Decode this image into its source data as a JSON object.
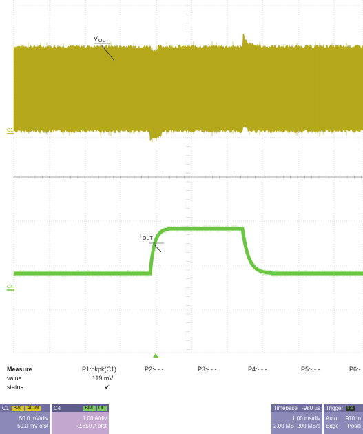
{
  "traces": {
    "vout_label": "V",
    "vout_sub": "OUT",
    "iout_label": "I",
    "iout_sub": "OUT",
    "c1_marker": "C1",
    "c4_marker": "C4"
  },
  "colors": {
    "vout": "#b5a81a",
    "iout": "#6cc644",
    "grid": "#b0b0b0",
    "panel": "#8a89b8"
  },
  "measure": {
    "title": "Measure",
    "row_value": "value",
    "row_status": "status",
    "p1_label": "P1:pkpk(C1)",
    "p1_value": "119 mV",
    "p1_status": "✔",
    "p2_label": "P2:- - -",
    "p3_label": "P3:- - -",
    "p4_label": "P4:- - -",
    "p5_label": "P5:- - -",
    "p6_label": "P6:-"
  },
  "c1": {
    "name": "C1",
    "tag1": "BwL",
    "tag2": "ACIM",
    "scale": "50.0 mV/div",
    "offset": "50.0 mV ofst"
  },
  "c4": {
    "name": "C4",
    "tag1": "BwL",
    "tag2": "DC",
    "scale": "1.00 A/div",
    "offset": "-2.650 A ofst"
  },
  "timebase": {
    "title": "Timebase",
    "delay": "-980 µs",
    "per_div": "1.00 ms/div",
    "samples": "2.00 MS",
    "rate": "200 MS/s"
  },
  "trigger": {
    "title": "Trigger",
    "src_tag": "C4",
    "mode": "Auto",
    "level": "970 m",
    "type": "Edge",
    "slope": "Positi"
  }
}
